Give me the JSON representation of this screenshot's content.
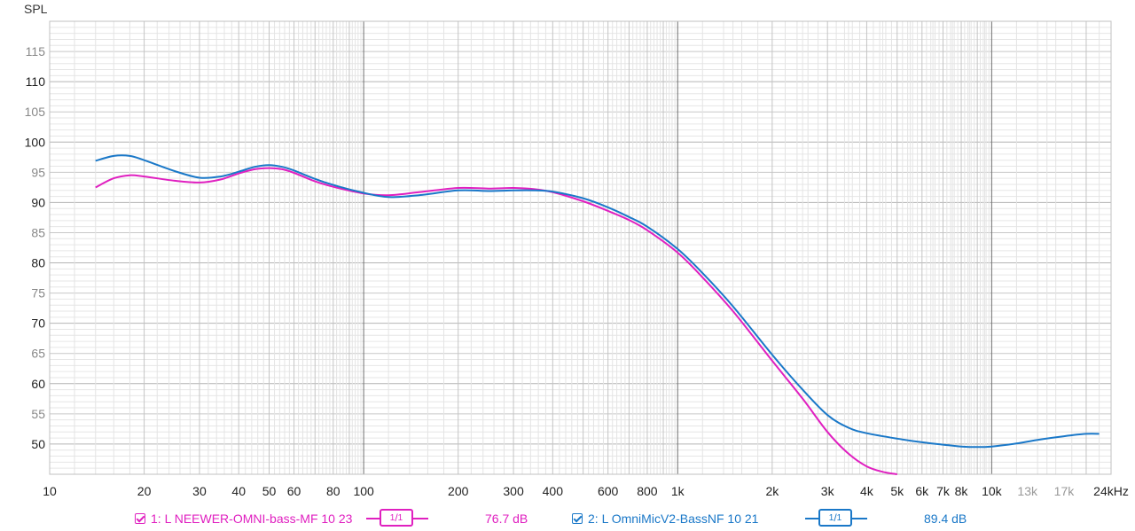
{
  "chart_data": {
    "type": "line",
    "title": "",
    "ylabel": "SPL",
    "xlabel": "",
    "x_scale": "log",
    "xlim": [
      10,
      24000
    ],
    "ylim": [
      45,
      120
    ],
    "grid": true,
    "y_ticks": [
      50,
      55,
      60,
      65,
      70,
      75,
      80,
      85,
      90,
      95,
      100,
      105,
      110,
      115
    ],
    "y_ticks_dark": [
      50,
      60,
      70,
      80,
      90,
      100,
      110
    ],
    "x_tick_labels": [
      {
        "v": 10,
        "label": "10"
      },
      {
        "v": 20,
        "label": "20"
      },
      {
        "v": 30,
        "label": "30"
      },
      {
        "v": 40,
        "label": "40"
      },
      {
        "v": 50,
        "label": "50"
      },
      {
        "v": 60,
        "label": "60"
      },
      {
        "v": 80,
        "label": "80"
      },
      {
        "v": 100,
        "label": "100"
      },
      {
        "v": 200,
        "label": "200"
      },
      {
        "v": 300,
        "label": "300"
      },
      {
        "v": 400,
        "label": "400"
      },
      {
        "v": 600,
        "label": "600"
      },
      {
        "v": 800,
        "label": "800"
      },
      {
        "v": 1000,
        "label": "1k"
      },
      {
        "v": 2000,
        "label": "2k"
      },
      {
        "v": 3000,
        "label": "3k"
      },
      {
        "v": 4000,
        "label": "4k"
      },
      {
        "v": 5000,
        "label": "5k"
      },
      {
        "v": 6000,
        "label": "6k"
      },
      {
        "v": 7000,
        "label": "7k"
      },
      {
        "v": 8000,
        "label": "8k"
      },
      {
        "v": 10000,
        "label": "10k"
      },
      {
        "v": 13000,
        "label": "13k",
        "muted": true
      },
      {
        "v": 17000,
        "label": "17k",
        "muted": true
      },
      {
        "v": 24000,
        "label": "24kHz"
      }
    ],
    "series": [
      {
        "name": "1: L NEEWER-OMNI-bass-MF 10 23",
        "color": "#e020c0",
        "x": [
          14,
          16,
          18,
          20,
          25,
          30,
          35,
          40,
          45,
          50,
          55,
          60,
          70,
          80,
          100,
          120,
          150,
          200,
          250,
          300,
          350,
          400,
          500,
          600,
          700,
          800,
          1000,
          1200,
          1500,
          2000,
          2500,
          3000,
          3500,
          4000,
          4500,
          5000
        ],
        "y": [
          92.5,
          94.0,
          94.5,
          94.3,
          93.6,
          93.3,
          93.8,
          94.8,
          95.5,
          95.7,
          95.5,
          94.9,
          93.5,
          92.6,
          91.5,
          91.2,
          91.7,
          92.4,
          92.3,
          92.4,
          92.2,
          91.7,
          90.2,
          88.6,
          87.1,
          85.4,
          81.7,
          77.6,
          72.0,
          63.8,
          57.5,
          52.0,
          48.4,
          46.3,
          45.4,
          44.9
        ]
      },
      {
        "name": "2: L OmniMicV2-BassNF 10 21",
        "color": "#1a78c8",
        "x": [
          14,
          16,
          18,
          20,
          25,
          30,
          35,
          40,
          45,
          50,
          55,
          60,
          70,
          80,
          100,
          120,
          150,
          200,
          250,
          300,
          350,
          400,
          500,
          600,
          700,
          800,
          1000,
          1200,
          1500,
          2000,
          2500,
          3000,
          3500,
          4000,
          5000,
          6000,
          7000,
          8000,
          9000,
          10000,
          12000,
          14000,
          17000,
          20000,
          22000
        ],
        "y": [
          96.9,
          97.7,
          97.7,
          97.0,
          95.2,
          94.1,
          94.3,
          95.1,
          95.9,
          96.2,
          95.9,
          95.3,
          93.9,
          92.9,
          91.6,
          90.9,
          91.2,
          92.0,
          91.9,
          92.0,
          92.0,
          91.8,
          90.7,
          89.2,
          87.6,
          86.0,
          82.3,
          78.3,
          72.8,
          64.8,
          59.0,
          54.8,
          52.7,
          51.8,
          50.9,
          50.3,
          49.9,
          49.6,
          49.5,
          49.6,
          50.1,
          50.7,
          51.3,
          51.7,
          51.7
        ]
      }
    ]
  },
  "legend": {
    "items": [
      {
        "checked": true,
        "name": "1: L NEEWER-OMNI-bass-MF 10 23",
        "smoothing_num": "1",
        "smoothing_den": "1",
        "level": "76.7 dB",
        "color": "#e020c0"
      },
      {
        "checked": true,
        "name": "2: L OmniMicV2-BassNF 10 21",
        "smoothing_num": "1",
        "smoothing_den": "1",
        "level": "89.4 dB",
        "color": "#1a78c8"
      }
    ]
  }
}
